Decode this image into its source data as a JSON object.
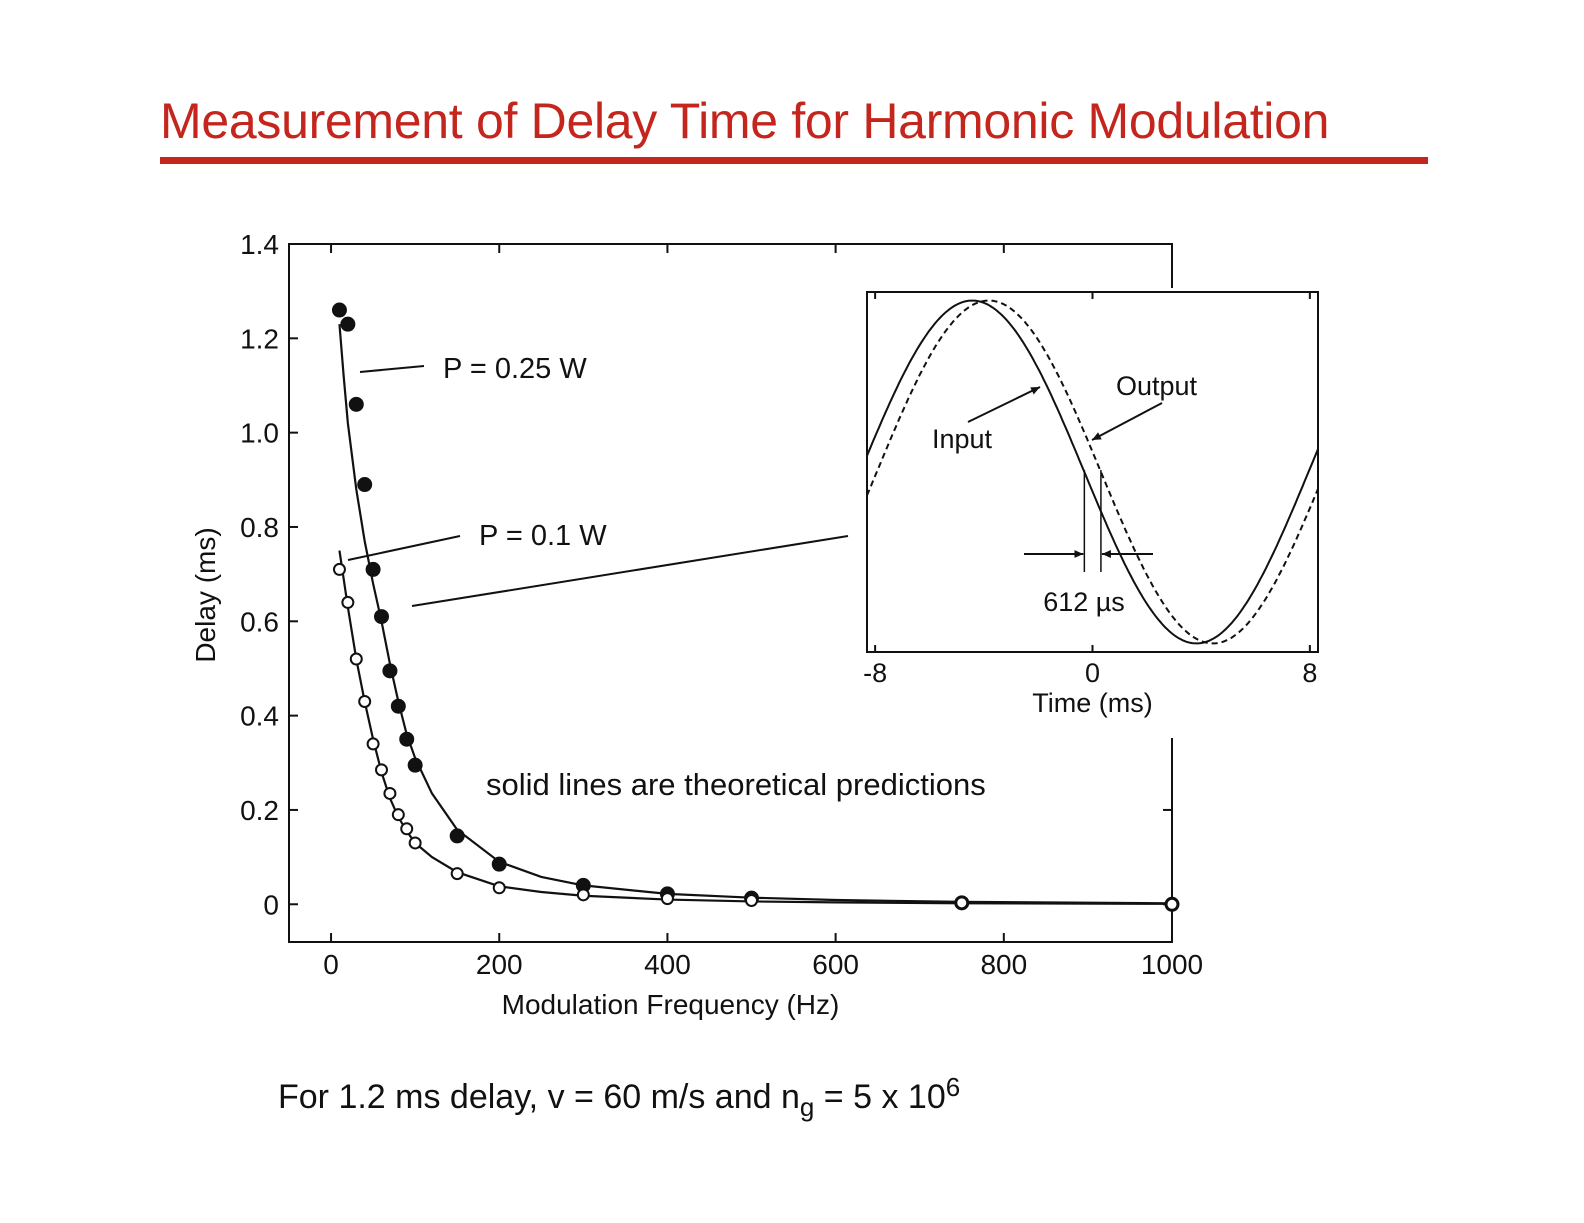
{
  "slide": {
    "title": "Measurement of Delay Time for Harmonic Modulation",
    "footnote": {
      "prefix": "For 1.2 ms delay, v = 60 m/s and n",
      "sub": "g",
      "mid": " = 5 x 10",
      "sup": "6"
    }
  },
  "chart_data": [
    {
      "type": "scatter",
      "xlabel": "Modulation Frequency (Hz)",
      "ylabel": "Delay (ms)",
      "xlim": [
        -50,
        1000
      ],
      "ylim": [
        -0.08,
        1.4
      ],
      "xticks": [
        0,
        200,
        400,
        600,
        800,
        1000
      ],
      "xtick_labels": [
        "0",
        "200",
        "400",
        "600",
        "800",
        "1000"
      ],
      "yticks": [
        0,
        0.2,
        0.4,
        0.6,
        0.8,
        1.0,
        1.2,
        1.4
      ],
      "ytick_labels": [
        "0",
        "0.2",
        "0.4",
        "0.6",
        "0.8",
        "1.0",
        "1.2",
        "1.4"
      ],
      "annotation": "solid lines are theoretical predictions",
      "series": [
        {
          "name": "P = 0.25 W",
          "marker": "filled-circle",
          "x": [
            10,
            20,
            30,
            40,
            50,
            60,
            70,
            80,
            90,
            100,
            150,
            200,
            300,
            400,
            500,
            750,
            1000
          ],
          "y": [
            1.26,
            1.23,
            1.06,
            0.89,
            0.71,
            0.61,
            0.495,
            0.42,
            0.35,
            0.295,
            0.145,
            0.085,
            0.04,
            0.022,
            0.013,
            0.003,
            0.0
          ],
          "theory": {
            "x": [
              10,
              15,
              20,
              30,
              40,
              50,
              60,
              70,
              80,
              90,
              100,
              120,
              150,
              200,
              250,
              300,
              400,
              500,
              600,
              750,
              1000
            ],
            "y": [
              1.23,
              1.12,
              1.02,
              0.88,
              0.77,
              0.68,
              0.6,
              0.51,
              0.43,
              0.36,
              0.31,
              0.235,
              0.158,
              0.09,
              0.058,
              0.04,
              0.022,
              0.014,
              0.009,
              0.005,
              0.002
            ]
          }
        },
        {
          "name": "P = 0.1 W",
          "marker": "open-circle",
          "x": [
            10,
            20,
            30,
            40,
            50,
            60,
            70,
            80,
            90,
            100,
            150,
            200,
            300,
            400,
            500,
            750,
            1000
          ],
          "y": [
            0.71,
            0.64,
            0.52,
            0.43,
            0.34,
            0.285,
            0.235,
            0.19,
            0.16,
            0.13,
            0.065,
            0.035,
            0.02,
            0.012,
            0.008,
            0.003,
            0.0
          ],
          "theory": {
            "x": [
              10,
              15,
              20,
              30,
              40,
              50,
              60,
              70,
              80,
              90,
              100,
              120,
              150,
              200,
              250,
              300,
              400,
              500,
              600,
              750,
              1000
            ],
            "y": [
              0.75,
              0.69,
              0.63,
              0.52,
              0.43,
              0.35,
              0.28,
              0.225,
              0.185,
              0.155,
              0.13,
              0.1,
              0.068,
              0.038,
              0.026,
              0.018,
              0.01,
              0.006,
              0.004,
              0.002,
              0.001
            ]
          }
        }
      ]
    },
    {
      "type": "line",
      "xlabel": "Time (ms)",
      "xticks": [
        -8,
        0,
        8
      ],
      "xtick_labels": [
        "-8",
        "0",
        "8"
      ],
      "xlim": [
        -8.3,
        8.3
      ],
      "ylim": [
        -1.05,
        1.05
      ],
      "annotation": "612 µs",
      "series": [
        {
          "name": "Input",
          "style": "solid",
          "function": "sine",
          "period_ms": 16.5,
          "crossing_ms": -0.3,
          "amplitude": 1
        },
        {
          "name": "Output",
          "style": "dashed",
          "function": "sine",
          "period_ms": 16.5,
          "crossing_ms": 0.31,
          "amplitude": 1
        }
      ]
    }
  ]
}
